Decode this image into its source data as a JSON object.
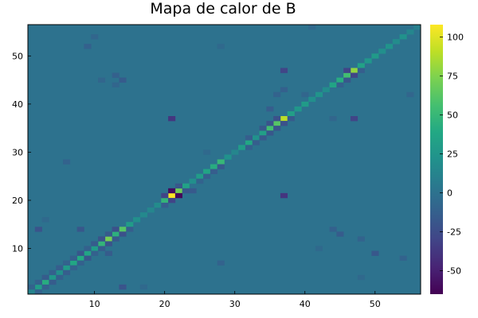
{
  "chart_data": {
    "type": "heatmap",
    "title": "Mapa de calor de B",
    "xlabel": "",
    "ylabel": "",
    "size": 56,
    "xlim": [
      0.5,
      56.5
    ],
    "ylim": [
      0.5,
      56.5
    ],
    "x_ticks": [
      10,
      20,
      30,
      40,
      50
    ],
    "y_ticks": [
      10,
      20,
      30,
      40,
      50
    ],
    "colorscale": "viridis",
    "clim": [
      -65,
      108
    ],
    "colorbar_ticks": [
      100,
      75,
      50,
      25,
      0,
      -25,
      -50
    ],
    "background_value": 0,
    "cells": [
      {
        "i": 1,
        "j": 1,
        "v": 12
      },
      {
        "i": 2,
        "j": 2,
        "v": 30
      },
      {
        "i": 3,
        "j": 3,
        "v": 42
      },
      {
        "i": 4,
        "j": 4,
        "v": 26
      },
      {
        "i": 5,
        "j": 5,
        "v": 20
      },
      {
        "i": 6,
        "j": 6,
        "v": 28
      },
      {
        "i": 7,
        "j": 7,
        "v": 38
      },
      {
        "i": 8,
        "j": 8,
        "v": 40
      },
      {
        "i": 9,
        "j": 9,
        "v": 36
      },
      {
        "i": 10,
        "j": 10,
        "v": 30
      },
      {
        "i": 11,
        "j": 11,
        "v": 48
      },
      {
        "i": 12,
        "j": 12,
        "v": 72
      },
      {
        "i": 13,
        "j": 13,
        "v": 45
      },
      {
        "i": 14,
        "j": 14,
        "v": 62
      },
      {
        "i": 15,
        "j": 15,
        "v": 30
      },
      {
        "i": 16,
        "j": 16,
        "v": 20
      },
      {
        "i": 17,
        "j": 17,
        "v": 16
      },
      {
        "i": 18,
        "j": 18,
        "v": 14
      },
      {
        "i": 19,
        "j": 19,
        "v": 18
      },
      {
        "i": 20,
        "j": 20,
        "v": 48
      },
      {
        "i": 21,
        "j": 21,
        "v": 108
      },
      {
        "i": 22,
        "j": 22,
        "v": 70
      },
      {
        "i": 23,
        "j": 23,
        "v": 35
      },
      {
        "i": 24,
        "j": 24,
        "v": 20
      },
      {
        "i": 25,
        "j": 25,
        "v": 30
      },
      {
        "i": 26,
        "j": 26,
        "v": 36
      },
      {
        "i": 27,
        "j": 27,
        "v": 42
      },
      {
        "i": 28,
        "j": 28,
        "v": 50
      },
      {
        "i": 29,
        "j": 29,
        "v": 22
      },
      {
        "i": 30,
        "j": 30,
        "v": 14
      },
      {
        "i": 31,
        "j": 31,
        "v": 30
      },
      {
        "i": 32,
        "j": 32,
        "v": 38
      },
      {
        "i": 33,
        "j": 33,
        "v": 22
      },
      {
        "i": 34,
        "j": 34,
        "v": 32
      },
      {
        "i": 35,
        "j": 35,
        "v": 55
      },
      {
        "i": 36,
        "j": 36,
        "v": 62
      },
      {
        "i": 37,
        "j": 37,
        "v": 90
      },
      {
        "i": 38,
        "j": 38,
        "v": 32
      },
      {
        "i": 39,
        "j": 39,
        "v": 26
      },
      {
        "i": 40,
        "j": 40,
        "v": 30
      },
      {
        "i": 41,
        "j": 41,
        "v": 20
      },
      {
        "i": 42,
        "j": 42,
        "v": 24
      },
      {
        "i": 43,
        "j": 43,
        "v": 18
      },
      {
        "i": 44,
        "j": 44,
        "v": 36
      },
      {
        "i": 45,
        "j": 45,
        "v": 42
      },
      {
        "i": 46,
        "j": 46,
        "v": 55
      },
      {
        "i": 47,
        "j": 47,
        "v": 80
      },
      {
        "i": 48,
        "j": 48,
        "v": 34
      },
      {
        "i": 49,
        "j": 49,
        "v": 26
      },
      {
        "i": 50,
        "j": 50,
        "v": 28
      },
      {
        "i": 51,
        "j": 51,
        "v": 20
      },
      {
        "i": 52,
        "j": 52,
        "v": 24
      },
      {
        "i": 53,
        "j": 53,
        "v": 18
      },
      {
        "i": 54,
        "j": 54,
        "v": 22
      },
      {
        "i": 55,
        "j": 55,
        "v": 14
      },
      {
        "i": 56,
        "j": 56,
        "v": 10
      },
      {
        "i": 2,
        "j": 1,
        "v": -10
      },
      {
        "i": 3,
        "j": 2,
        "v": -12
      },
      {
        "i": 4,
        "j": 3,
        "v": -15
      },
      {
        "i": 5,
        "j": 4,
        "v": -12
      },
      {
        "i": 6,
        "j": 5,
        "v": -14
      },
      {
        "i": 7,
        "j": 6,
        "v": -10
      },
      {
        "i": 8,
        "j": 7,
        "v": -12
      },
      {
        "i": 9,
        "j": 8,
        "v": -18
      },
      {
        "i": 10,
        "j": 9,
        "v": -12
      },
      {
        "i": 11,
        "j": 10,
        "v": -15
      },
      {
        "i": 12,
        "j": 11,
        "v": -20
      },
      {
        "i": 13,
        "j": 12,
        "v": -16
      },
      {
        "i": 14,
        "j": 13,
        "v": -22
      },
      {
        "i": 15,
        "j": 14,
        "v": -14
      },
      {
        "i": 20,
        "j": 19,
        "v": -14
      },
      {
        "i": 21,
        "j": 20,
        "v": -30
      },
      {
        "i": 22,
        "j": 21,
        "v": -62
      },
      {
        "i": 23,
        "j": 22,
        "v": -18
      },
      {
        "i": 26,
        "j": 25,
        "v": -12
      },
      {
        "i": 27,
        "j": 26,
        "v": -14
      },
      {
        "i": 28,
        "j": 27,
        "v": -16
      },
      {
        "i": 32,
        "j": 31,
        "v": -12
      },
      {
        "i": 33,
        "j": 32,
        "v": -14
      },
      {
        "i": 34,
        "j": 33,
        "v": -16
      },
      {
        "i": 35,
        "j": 34,
        "v": -18
      },
      {
        "i": 36,
        "j": 35,
        "v": -20
      },
      {
        "i": 37,
        "j": 36,
        "v": -22
      },
      {
        "i": 38,
        "j": 37,
        "v": -16
      },
      {
        "i": 45,
        "j": 44,
        "v": -12
      },
      {
        "i": 46,
        "j": 45,
        "v": -18
      },
      {
        "i": 47,
        "j": 46,
        "v": -30
      },
      {
        "i": 48,
        "j": 47,
        "v": -14
      },
      {
        "i": 1,
        "j": 2,
        "v": -10
      },
      {
        "i": 2,
        "j": 3,
        "v": -12
      },
      {
        "i": 3,
        "j": 4,
        "v": -15
      },
      {
        "i": 4,
        "j": 5,
        "v": -12
      },
      {
        "i": 5,
        "j": 6,
        "v": -14
      },
      {
        "i": 6,
        "j": 7,
        "v": -10
      },
      {
        "i": 7,
        "j": 8,
        "v": -12
      },
      {
        "i": 8,
        "j": 9,
        "v": -18
      },
      {
        "i": 9,
        "j": 10,
        "v": -12
      },
      {
        "i": 10,
        "j": 11,
        "v": -15
      },
      {
        "i": 11,
        "j": 12,
        "v": -20
      },
      {
        "i": 12,
        "j": 13,
        "v": -16
      },
      {
        "i": 13,
        "j": 14,
        "v": -22
      },
      {
        "i": 20,
        "j": 21,
        "v": -30
      },
      {
        "i": 21,
        "j": 22,
        "v": -60
      },
      {
        "i": 22,
        "j": 23,
        "v": -18
      },
      {
        "i": 32,
        "j": 33,
        "v": -14
      },
      {
        "i": 34,
        "j": 35,
        "v": -16
      },
      {
        "i": 35,
        "j": 36,
        "v": -20
      },
      {
        "i": 36,
        "j": 37,
        "v": -22
      },
      {
        "i": 46,
        "j": 47,
        "v": -30
      },
      {
        "i": 21,
        "j": 37,
        "v": -38
      },
      {
        "i": 37,
        "j": 21,
        "v": -38
      },
      {
        "i": 47,
        "j": 37,
        "v": -30
      },
      {
        "i": 37,
        "j": 47,
        "v": -30
      },
      {
        "i": 24,
        "j": 22,
        "v": -16
      },
      {
        "i": 25,
        "j": 24,
        "v": -10
      },
      {
        "i": 8,
        "j": 14,
        "v": -18
      },
      {
        "i": 12,
        "j": 9,
        "v": -15
      },
      {
        "i": 14,
        "j": 2,
        "v": -20
      },
      {
        "i": 2,
        "j": 14,
        "v": -20
      },
      {
        "i": 54,
        "j": 8,
        "v": -10
      },
      {
        "i": 50,
        "j": 9,
        "v": -18
      },
      {
        "i": 45,
        "j": 13,
        "v": -15
      },
      {
        "i": 44,
        "j": 14,
        "v": -12
      },
      {
        "i": 37,
        "j": 43,
        "v": -12
      },
      {
        "i": 40,
        "j": 42,
        "v": -8
      },
      {
        "i": 14,
        "j": 45,
        "v": -15
      },
      {
        "i": 13,
        "j": 46,
        "v": -12
      },
      {
        "i": 35,
        "j": 39,
        "v": -14
      },
      {
        "i": 36,
        "j": 42,
        "v": -10
      },
      {
        "i": 6,
        "j": 28,
        "v": -10
      },
      {
        "i": 9,
        "j": 52,
        "v": -12
      },
      {
        "i": 10,
        "j": 54,
        "v": -8
      },
      {
        "i": 48,
        "j": 12,
        "v": -10
      },
      {
        "i": 55,
        "j": 42,
        "v": -8
      },
      {
        "i": 41,
        "j": 56,
        "v": -6
      },
      {
        "i": 17,
        "j": 2,
        "v": -6
      },
      {
        "i": 3,
        "j": 16,
        "v": -6
      },
      {
        "i": 28,
        "j": 7,
        "v": -10
      },
      {
        "i": 26,
        "j": 30,
        "v": -6
      },
      {
        "i": 28,
        "j": 52,
        "v": -6
      },
      {
        "i": 13,
        "j": 44,
        "v": -8
      },
      {
        "i": 11,
        "j": 45,
        "v": -8
      },
      {
        "i": 42,
        "j": 10,
        "v": -6
      },
      {
        "i": 48,
        "j": 4,
        "v": -6
      },
      {
        "i": 44,
        "j": 37,
        "v": -8
      }
    ]
  }
}
